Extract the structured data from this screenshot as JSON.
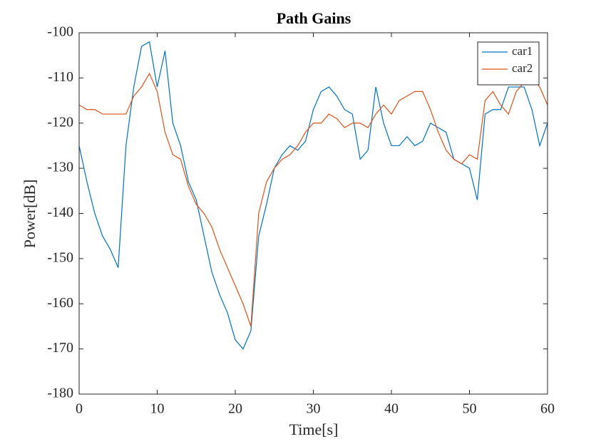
{
  "chart_data": {
    "type": "line",
    "title": "Path Gains",
    "x_label": "Time[s]",
    "y_label": "Power[dB]",
    "x": [
      0,
      1,
      2,
      3,
      4,
      5,
      6,
      7,
      8,
      9,
      10,
      11,
      12,
      13,
      14,
      15,
      16,
      17,
      18,
      19,
      20,
      21,
      22,
      23,
      24,
      25,
      26,
      27,
      28,
      29,
      30,
      31,
      32,
      33,
      34,
      35,
      36,
      37,
      38,
      39,
      40,
      41,
      42,
      43,
      44,
      45,
      46,
      47,
      48,
      49,
      50,
      51,
      52,
      53,
      54,
      55,
      56,
      57,
      58,
      59,
      60
    ],
    "series": [
      {
        "name": "car1",
        "color": "#0072BD",
        "values": [
          -125,
          -133,
          -140,
          -145,
          -148,
          -152,
          -125,
          -112,
          -103,
          -102,
          -112,
          -104,
          -120,
          -125,
          -133,
          -137,
          -145,
          -153,
          -158,
          -162,
          -168,
          -170,
          -166,
          -145,
          -138,
          -130,
          -127,
          -125,
          -126,
          -124,
          -117,
          -113,
          -112,
          -114,
          -117,
          -118,
          -128,
          -126,
          -112,
          -120,
          -125,
          -125,
          -123,
          -125,
          -124,
          -120,
          -121,
          -122,
          -128,
          -129,
          -130,
          -137,
          -118,
          -117,
          -117,
          -112,
          -112,
          -112,
          -117,
          -125,
          -120
        ]
      },
      {
        "name": "car2",
        "color": "#D95319",
        "values": [
          -116,
          -117,
          -117,
          -118,
          -118,
          -118,
          -118,
          -114,
          -112,
          -109,
          -113,
          -122,
          -127,
          -128,
          -134,
          -138,
          -140,
          -143,
          -148,
          -152,
          -156,
          -160,
          -165,
          -140,
          -133,
          -130,
          -128,
          -127,
          -125,
          -122,
          -120,
          -120,
          -118,
          -119,
          -121,
          -120,
          -120,
          -121,
          -118,
          -116,
          -118,
          -115,
          -114,
          -113,
          -113,
          -117,
          -122,
          -126,
          -128,
          -129,
          -127,
          -128,
          -115,
          -113,
          -116,
          -118,
          -113,
          -111,
          -110,
          -112,
          -116
        ]
      }
    ],
    "xlim": [
      0,
      60
    ],
    "ylim": [
      -180,
      -100
    ],
    "xticks": [
      0,
      10,
      20,
      30,
      40,
      50,
      60
    ],
    "yticks": [
      -180,
      -170,
      -160,
      -150,
      -140,
      -130,
      -120,
      -110,
      -100
    ],
    "grid": false,
    "legend": "top-right"
  }
}
